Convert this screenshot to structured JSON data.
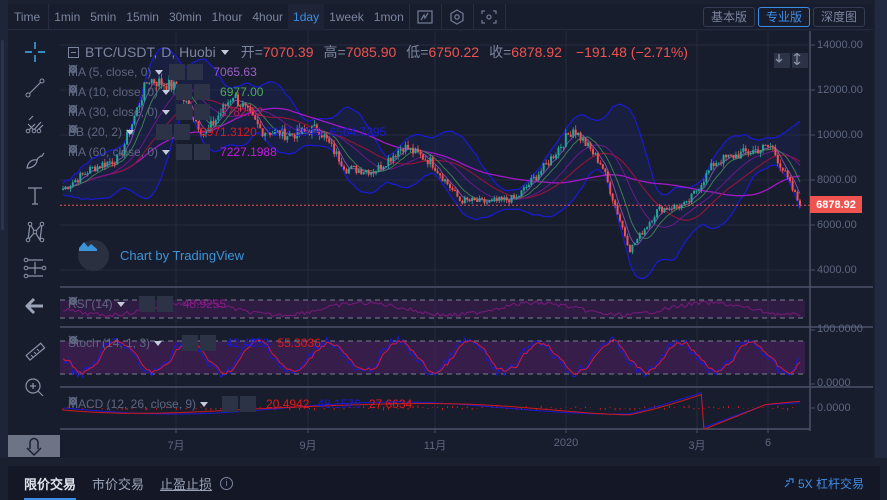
{
  "toolbar": {
    "intervals": [
      "Time",
      "1min",
      "5min",
      "15min",
      "30min",
      "1hour",
      "4hour",
      "1day",
      "1week",
      "1mon"
    ],
    "active_interval": "1day",
    "icons": [
      "indicators-icon",
      "settings-icon",
      "fullscreen-icon"
    ],
    "versions": [
      {
        "label": "基本版",
        "active": false
      },
      {
        "label": "专业版",
        "active": true
      },
      {
        "label": "深度图",
        "active": false
      }
    ]
  },
  "drawing_tools": [
    "crosshair-icon",
    "trend-line-icon",
    "pitchfork-icon",
    "brush-icon",
    "text-icon",
    "pattern-icon",
    "measure-icon",
    "back-arrow-icon",
    "ruler-icon",
    "zoom-in-icon"
  ],
  "chart_header": {
    "symbol": "BTC/USDT, D, Huobi",
    "open_label": "开=",
    "open": "7070.39",
    "high_label": "高=",
    "high": "7085.90",
    "low_label": "低=",
    "low": "6750.22",
    "close_label": "收=",
    "close": "6878.92",
    "change": "−191.48 (−2.71%)"
  },
  "indicators": [
    {
      "name": "MA (5, close, 0)",
      "values": [
        "7065.63"
      ],
      "colors": [
        "#9c5fc8"
      ]
    },
    {
      "name": "MA (10, close, 0)",
      "values": [
        "6977.00"
      ],
      "colors": [
        "#4caf50"
      ]
    },
    {
      "name": "MA (30, close, 0)",
      "values": [
        "6782.52"
      ],
      "colors": [
        "#c2185b"
      ]
    },
    {
      "name": "BB (20, 2)",
      "values": [
        "6971.3120",
        "7377.8946",
        "6564.7295"
      ],
      "colors": [
        "#e01a1a",
        "#1a1ad6",
        "#1a1ad6"
      ]
    },
    {
      "name": "MA (60, close, 0)",
      "values": [
        "7227.1988"
      ],
      "colors": [
        "#c41ae0"
      ]
    }
  ],
  "price_axis": [
    "14000.00",
    "12000.00",
    "10000.00",
    "8000.00",
    "6000.00",
    "4000.00"
  ],
  "last_price": "6878.92",
  "watermark": "Chart by TradingView",
  "sub_panes": {
    "rsi": {
      "name": "RSI (14)",
      "values": [
        "48.9255"
      ],
      "colors": [
        "#8a1a8a"
      ]
    },
    "stoch": {
      "name": "Stoch (14, 1, 3)",
      "values": [
        "42.4383",
        "55.3036"
      ],
      "colors": [
        "#1a1ad6",
        "#e01a1a"
      ],
      "axis": [
        "100.0000",
        "0.0000"
      ]
    },
    "macd": {
      "name": "MACD (12, 26, close, 9)",
      "values": [
        "20.4942",
        "48.1576",
        "27.6634"
      ],
      "colors": [
        "#e01a1a",
        "#1a1ad6",
        "#e01a1a"
      ],
      "axis": [
        "0.0000"
      ]
    }
  },
  "time_axis": [
    "7月",
    "9月",
    "11月",
    "2020",
    "3月",
    "6"
  ],
  "trade_tabs": [
    "限价交易",
    "市价交易",
    "止盈止损"
  ],
  "leverage_link": "5X 杠杆交易",
  "chart_data": {
    "type": "candlestick",
    "title": "BTC/USDT, D, Huobi",
    "ohlc_last": {
      "open": 7070.39,
      "high": 7085.9,
      "low": 6750.22,
      "close": 6878.92,
      "change": -191.48,
      "change_pct": -2.71
    },
    "x_ticks": [
      "7月",
      "9月",
      "11月",
      "2020",
      "3月",
      "6"
    ],
    "y_ticks": [
      4000,
      6000,
      8000,
      10000,
      12000,
      14000
    ],
    "ylim": [
      3000,
      14500
    ],
    "approx_close_path": [
      {
        "x": "2019-05",
        "close": 7600
      },
      {
        "x": "2019-06-01",
        "close": 8500
      },
      {
        "x": "2019-06-15",
        "close": 9000
      },
      {
        "x": "2019-06-26",
        "close": 12500
      },
      {
        "x": "2019-07-10",
        "close": 12100
      },
      {
        "x": "2019-07-20",
        "close": 10000
      },
      {
        "x": "2019-08-06",
        "close": 11800
      },
      {
        "x": "2019-08-20",
        "close": 10200
      },
      {
        "x": "2019-09-01",
        "close": 10000
      },
      {
        "x": "2019-09-15",
        "close": 10300
      },
      {
        "x": "2019-09-24",
        "close": 8500
      },
      {
        "x": "2019-10-10",
        "close": 8400
      },
      {
        "x": "2019-10-26",
        "close": 9500
      },
      {
        "x": "2019-11-10",
        "close": 8800
      },
      {
        "x": "2019-11-25",
        "close": 7100
      },
      {
        "x": "2019-12-15",
        "close": 7000
      },
      {
        "x": "2020-01-01",
        "close": 7200
      },
      {
        "x": "2020-01-20",
        "close": 8600
      },
      {
        "x": "2020-02-13",
        "close": 10300
      },
      {
        "x": "2020-02-28",
        "close": 8700
      },
      {
        "x": "2020-03-12",
        "close": 4900
      },
      {
        "x": "2020-03-25",
        "close": 6700
      },
      {
        "x": "2020-04-15",
        "close": 6900
      },
      {
        "x": "2020-05-01",
        "close": 8800
      },
      {
        "x": "2020-05-20",
        "close": 9200
      },
      {
        "x": "2020-06-01",
        "close": 9500
      },
      {
        "x": "last",
        "close": 6878.92
      }
    ],
    "indicators": {
      "MA5": 7065.63,
      "MA10": 6977.0,
      "MA30": 6782.52,
      "BB_basis": 6971.312,
      "BB_upper": 7377.8946,
      "BB_lower": 6564.7295,
      "MA60": 7227.1988,
      "RSI14": 48.9255,
      "Stoch_K": 42.4383,
      "Stoch_D": 55.3036,
      "MACD": 20.4942,
      "MACD_signal": 48.1576,
      "MACD_hist": 27.6634
    },
    "legend_position": "top-left",
    "grid": true
  }
}
